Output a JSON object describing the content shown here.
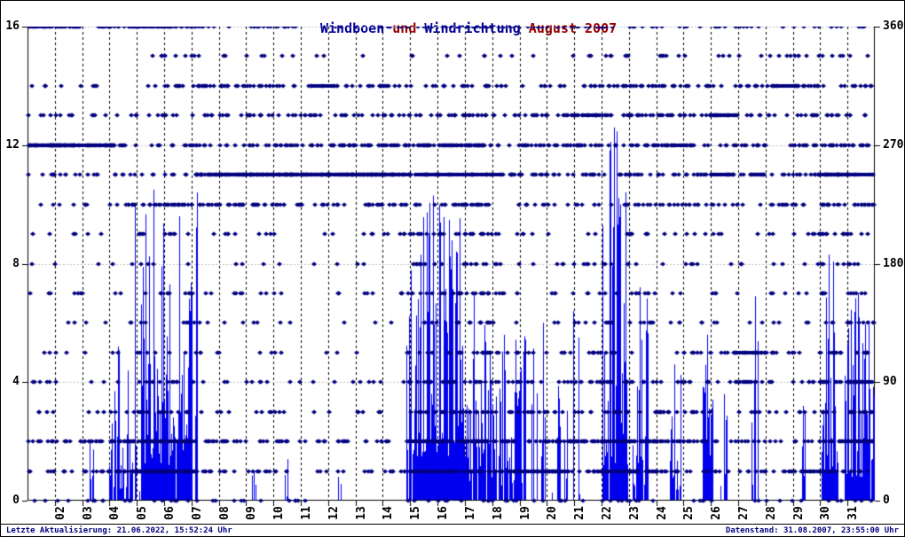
{
  "title": {
    "series1": "Windboen",
    "connector": " und ",
    "series2": "Windrichtung",
    "suffix": " August 2007"
  },
  "footer": {
    "left": "Letzte Aktualisierung: 21.06.2022, 15:52:24 Uhr",
    "right": "Datenstand: 31.08.2007, 23:55:00 Uhr"
  },
  "colors": {
    "bars": "#0000ee",
    "dots": "#000080",
    "title_series": "#000099",
    "title_rest": "#990000",
    "footer_text": "#000080",
    "grid_horizontal": "#c0c0c0",
    "grid_vertical": "#000000",
    "axis": "#000000",
    "background": "#ffffff"
  },
  "axes": {
    "left": {
      "tick_values": [
        16,
        12,
        8,
        4,
        0
      ],
      "tick_labels": [
        "16",
        "12",
        "8",
        "4",
        "0"
      ],
      "range": [
        0,
        16
      ]
    },
    "right": {
      "tick_values": [
        360,
        270,
        180,
        90,
        0
      ],
      "tick_labels": [
        "360",
        "270",
        "180",
        "90",
        "0"
      ],
      "range": [
        0,
        360
      ]
    },
    "x": {
      "labels": [
        "02",
        "03",
        "04",
        "05",
        "06",
        "07",
        "08",
        "09",
        "10",
        "11",
        "12",
        "13",
        "14",
        "15",
        "16",
        "17",
        "18",
        "19",
        "20",
        "21",
        "22",
        "23",
        "24",
        "25",
        "26",
        "27",
        "28",
        "29",
        "30",
        "31"
      ],
      "first_day": 1,
      "last_day": 31
    }
  },
  "chart_data": {
    "type": "mixed",
    "title": "Windboen und Windrichtung August 2007",
    "month": "August 2007",
    "left_ylim": [
      0,
      16
    ],
    "right_ylim": [
      0,
      360
    ],
    "x_range_days": [
      1,
      32
    ],
    "grid": {
      "horizontal_at_left_units": [
        4,
        8,
        12,
        16
      ],
      "vertical_at_day_starts": [
        2,
        3,
        4,
        5,
        6,
        7,
        8,
        9,
        10,
        11,
        12,
        13,
        14,
        15,
        16,
        17,
        18,
        19,
        20,
        21,
        22,
        23,
        24,
        25,
        26,
        27,
        28,
        29,
        30,
        31
      ]
    },
    "series": [
      {
        "name": "Windboen",
        "type": "bar",
        "axis": "left",
        "color": "#0000ee",
        "events": [
          {
            "from": 3.15,
            "to": 3.45,
            "peak": 2.0,
            "base": 0,
            "density": 0.5
          },
          {
            "from": 3.95,
            "to": 4.75,
            "peak": 5.2,
            "base": 0.4,
            "density": 0.85
          },
          {
            "from": 4.75,
            "to": 5.15,
            "peak": 10.0,
            "base": 0,
            "density": 0.5
          },
          {
            "from": 5.15,
            "to": 6.2,
            "peak": 10.5,
            "base": 1.2,
            "density": 0.95
          },
          {
            "from": 6.2,
            "to": 7.0,
            "peak": 9.6,
            "base": 1.5,
            "density": 0.95
          },
          {
            "from": 7.15,
            "to": 7.3,
            "peak": 10.4,
            "base": 0,
            "density": 0.6
          },
          {
            "from": 9.2,
            "to": 9.35,
            "peak": 1.0,
            "base": 0,
            "density": 0.5
          },
          {
            "from": 10.4,
            "to": 10.6,
            "peak": 1.4,
            "base": 0,
            "density": 0.5
          },
          {
            "from": 12.3,
            "to": 12.45,
            "peak": 0.8,
            "base": 0,
            "density": 0.4
          },
          {
            "from": 14.85,
            "to": 17.0,
            "peak": 10.3,
            "base": 1.5,
            "density": 0.97
          },
          {
            "from": 17.0,
            "to": 17.75,
            "peak": 7.0,
            "base": 0.5,
            "density": 0.8
          },
          {
            "from": 17.8,
            "to": 19.2,
            "peak": 5.6,
            "base": 0.5,
            "density": 0.85
          },
          {
            "from": 19.3,
            "to": 20.5,
            "peak": 6.0,
            "base": 0,
            "density": 0.35
          },
          {
            "from": 20.6,
            "to": 21.4,
            "peak": 6.4,
            "base": 0,
            "density": 0.25
          },
          {
            "from": 22.05,
            "to": 22.95,
            "peak": 12.6,
            "base": 1.2,
            "density": 0.95
          },
          {
            "from": 23.15,
            "to": 23.7,
            "peak": 7.2,
            "base": 0.5,
            "density": 0.8
          },
          {
            "from": 24.5,
            "to": 24.9,
            "peak": 4.6,
            "base": 0.3,
            "density": 0.7
          },
          {
            "from": 25.7,
            "to": 26.05,
            "peak": 5.6,
            "base": 0.8,
            "density": 0.9
          },
          {
            "from": 26.35,
            "to": 26.6,
            "peak": 3.6,
            "base": 0,
            "density": 0.5
          },
          {
            "from": 27.5,
            "to": 27.75,
            "peak": 6.9,
            "base": 0,
            "density": 0.5
          },
          {
            "from": 29.33,
            "to": 29.45,
            "peak": 3.2,
            "base": 0,
            "density": 0.5
          },
          {
            "from": 30.05,
            "to": 30.65,
            "peak": 8.3,
            "base": 1.0,
            "density": 0.95
          },
          {
            "from": 30.9,
            "to": 31.97,
            "peak": 7.0,
            "base": 0.8,
            "density": 0.9
          }
        ]
      },
      {
        "name": "Windrichtung",
        "type": "scatter",
        "axis": "right",
        "color": "#000080",
        "marker": "diamond",
        "direction_step_deg": 22.5,
        "levels_note": "levels arrays are dots-per-day densities for direction levels 0..16 (level * 22.5 deg)",
        "segments": [
          {
            "from": 1.0,
            "to": 3.0,
            "levels": [
              2,
              5,
              8,
              2,
              3,
              2,
              1,
              3,
              1,
              2,
              2,
              6,
              30,
              5,
              3,
              0,
              20
            ]
          },
          {
            "from": 3.0,
            "to": 4.5,
            "levels": [
              3,
              10,
              12,
              3,
              2,
              2,
              1,
              2,
              1,
              1,
              3,
              5,
              22,
              3,
              2,
              0,
              8
            ]
          },
          {
            "from": 4.5,
            "to": 7.2,
            "levels": [
              4,
              28,
              22,
              6,
              4,
              3,
              3,
              4,
              2,
              4,
              14,
              5,
              6,
              4,
              4,
              3,
              14
            ]
          },
          {
            "from": 7.2,
            "to": 10.0,
            "levels": [
              2,
              6,
              8,
              3,
              3,
              2,
              2,
              3,
              1,
              3,
              12,
              28,
              6,
              8,
              12,
              2,
              5
            ]
          },
          {
            "from": 10.0,
            "to": 14.8,
            "levels": [
              1,
              4,
              6,
              2,
              2,
              1,
              1,
              2,
              1,
              2,
              8,
              30,
              12,
              6,
              6,
              1,
              4
            ]
          },
          {
            "from": 14.8,
            "to": 18.0,
            "levels": [
              3,
              12,
              18,
              9,
              7,
              7,
              5,
              8,
              5,
              8,
              10,
              14,
              20,
              8,
              6,
              2,
              8
            ]
          },
          {
            "from": 18.0,
            "to": 21.5,
            "levels": [
              3,
              14,
              16,
              6,
              5,
              4,
              2,
              3,
              3,
              2,
              4,
              8,
              10,
              8,
              4,
              1,
              6
            ]
          },
          {
            "from": 21.5,
            "to": 24.5,
            "levels": [
              3,
              16,
              18,
              8,
              6,
              4,
              4,
              4,
              3,
              4,
              6,
              8,
              10,
              12,
              10,
              4,
              6
            ]
          },
          {
            "from": 24.5,
            "to": 26.8,
            "levels": [
              2,
              6,
              8,
              4,
              5,
              5,
              3,
              2,
              2,
              3,
              6,
              10,
              8,
              12,
              6,
              2,
              4
            ]
          },
          {
            "from": 26.8,
            "to": 28.5,
            "levels": [
              2,
              5,
              6,
              4,
              10,
              12,
              2,
              2,
              2,
              2,
              5,
              10,
              8,
              6,
              8,
              2,
              4
            ]
          },
          {
            "from": 28.5,
            "to": 30.0,
            "levels": [
              2,
              10,
              6,
              3,
              4,
              3,
              2,
              2,
              2,
              4,
              6,
              10,
              8,
              6,
              10,
              5,
              4
            ]
          },
          {
            "from": 30.0,
            "to": 32.0,
            "levels": [
              3,
              9,
              13,
              9,
              14,
              7,
              6,
              6,
              4,
              7,
              12,
              16,
              12,
              6,
              6,
              3,
              5
            ]
          }
        ],
        "solid_runs": [
          {
            "level": 16,
            "from": 1.05,
            "to": 1.6
          },
          {
            "level": 12,
            "from": 1.1,
            "to": 2.2
          },
          {
            "level": 12,
            "from": 2.6,
            "to": 4.1
          },
          {
            "level": 16,
            "from": 5.0,
            "to": 5.5
          },
          {
            "level": 16,
            "from": 5.8,
            "to": 6.3
          },
          {
            "level": 2,
            "from": 5.3,
            "to": 7.0
          },
          {
            "level": 1,
            "from": 5.3,
            "to": 7.2
          },
          {
            "level": 11,
            "from": 8.0,
            "to": 15.0
          },
          {
            "level": 14,
            "from": 11.4,
            "to": 12.2
          },
          {
            "level": 11,
            "from": 15.2,
            "to": 18.3
          },
          {
            "level": 12,
            "from": 16.2,
            "to": 16.9
          },
          {
            "level": 2,
            "from": 15.0,
            "to": 16.2
          },
          {
            "level": 1,
            "from": 15.0,
            "to": 16.5
          },
          {
            "level": 1,
            "from": 18.8,
            "to": 20.8
          },
          {
            "level": 13,
            "from": 21.3,
            "to": 21.95
          },
          {
            "level": 2,
            "from": 22.1,
            "to": 23.0
          },
          {
            "level": 1,
            "from": 22.1,
            "to": 23.3
          },
          {
            "level": 12,
            "from": 24.55,
            "to": 25.0
          },
          {
            "level": 13,
            "from": 26.0,
            "to": 26.85
          },
          {
            "level": 11,
            "from": 26.0,
            "to": 26.8
          },
          {
            "level": 5,
            "from": 26.9,
            "to": 27.65
          },
          {
            "level": 14,
            "from": 28.3,
            "to": 29.2
          },
          {
            "level": 1,
            "from": 29.3,
            "to": 29.8
          },
          {
            "level": 11,
            "from": 30.0,
            "to": 30.95
          },
          {
            "level": 11,
            "from": 31.05,
            "to": 31.95
          },
          {
            "level": 4,
            "from": 31.1,
            "to": 31.9
          },
          {
            "level": 2,
            "from": 30.9,
            "to": 31.9
          }
        ]
      }
    ]
  }
}
